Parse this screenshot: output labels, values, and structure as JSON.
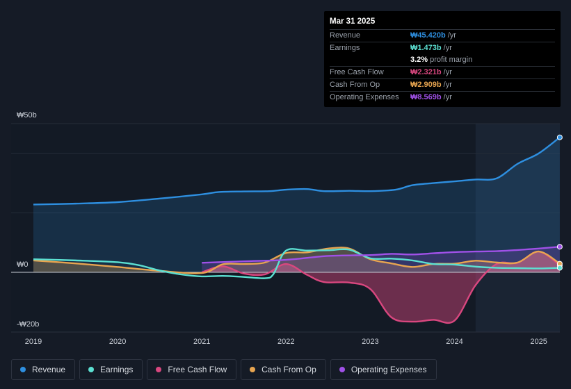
{
  "tooltip": {
    "date": "Mar 31 2025",
    "rows": [
      {
        "label": "Revenue",
        "value": "₩45.420b",
        "unit": "/yr",
        "color": "#2e8fe0"
      },
      {
        "label": "Earnings",
        "value": "₩1.473b",
        "unit": "/yr",
        "color": "#5ce0d2"
      },
      {
        "label": "",
        "value": "3.2%",
        "unit": "profit margin",
        "color": "#ffffff"
      },
      {
        "label": "Free Cash Flow",
        "value": "₩2.321b",
        "unit": "/yr",
        "color": "#d9477f"
      },
      {
        "label": "Cash From Op",
        "value": "₩2.909b",
        "unit": "/yr",
        "color": "#e8a550"
      },
      {
        "label": "Operating Expenses",
        "value": "₩8.569b",
        "unit": "/yr",
        "color": "#a051e8"
      }
    ]
  },
  "legend": [
    {
      "label": "Revenue",
      "color": "#2e8fe0"
    },
    {
      "label": "Earnings",
      "color": "#5ce0d2"
    },
    {
      "label": "Free Cash Flow",
      "color": "#d9477f"
    },
    {
      "label": "Cash From Op",
      "color": "#e8a550"
    },
    {
      "label": "Operating Expenses",
      "color": "#a051e8"
    }
  ],
  "chart_data": {
    "type": "line",
    "title": "",
    "xlabel": "",
    "ylabel": "",
    "ylim": [
      -20,
      50
    ],
    "xlim": [
      2018.9,
      2025.25
    ],
    "y_tick_labels": [
      {
        "value": 50,
        "label": "₩50b"
      },
      {
        "value": 0,
        "label": "₩0"
      },
      {
        "value": -20,
        "label": "-₩20b"
      }
    ],
    "x_tick_labels": [
      {
        "value": 2019,
        "label": "2019"
      },
      {
        "value": 2020,
        "label": "2020"
      },
      {
        "value": 2021,
        "label": "2021"
      },
      {
        "value": 2022,
        "label": "2022"
      },
      {
        "value": 2023,
        "label": "2023"
      },
      {
        "value": 2024,
        "label": "2024"
      },
      {
        "value": 2025,
        "label": "2025"
      }
    ],
    "forecast_start": 2024.25,
    "series": [
      {
        "name": "Revenue",
        "color": "#2e8fe0",
        "fill": true,
        "x": [
          2019.0,
          2019.5,
          2020.0,
          2020.5,
          2021.0,
          2021.2,
          2021.5,
          2021.8,
          2022.0,
          2022.25,
          2022.45,
          2022.75,
          2023.0,
          2023.3,
          2023.5,
          2023.75,
          2024.0,
          2024.25,
          2024.5,
          2024.75,
          2025.0,
          2025.25
        ],
        "values": [
          22.8,
          23.1,
          23.6,
          24.8,
          26.2,
          27.0,
          27.2,
          27.3,
          27.8,
          28.0,
          27.3,
          27.4,
          27.3,
          27.8,
          29.3,
          30.0,
          30.6,
          31.2,
          31.6,
          36.5,
          40.0,
          45.4
        ]
      },
      {
        "name": "Earnings",
        "color": "#5ce0d2",
        "fill": false,
        "x": [
          2019.0,
          2019.5,
          2020.0,
          2020.25,
          2020.5,
          2020.75,
          2021.0,
          2021.25,
          2021.5,
          2021.75,
          2021.85,
          2022.0,
          2022.25,
          2022.5,
          2022.75,
          2023.0,
          2023.25,
          2023.5,
          2023.75,
          2024.0,
          2024.25,
          2024.5,
          2024.75,
          2025.0,
          2025.25
        ],
        "values": [
          4.4,
          4.0,
          3.4,
          2.4,
          0.6,
          -0.8,
          -1.6,
          -1.4,
          -1.8,
          -2.3,
          -0.7,
          7.3,
          7.3,
          7.4,
          7.6,
          4.7,
          4.6,
          4.0,
          2.8,
          2.6,
          1.9,
          1.5,
          1.4,
          1.3,
          1.5
        ]
      },
      {
        "name": "Free Cash Flow",
        "color": "#d9477f",
        "fill": true,
        "x": [
          2021.0,
          2021.25,
          2021.5,
          2021.75,
          2022.0,
          2022.25,
          2022.45,
          2022.75,
          2023.0,
          2023.25,
          2023.5,
          2023.75,
          2024.0,
          2024.25,
          2024.5,
          2024.75,
          2025.0,
          2025.25
        ],
        "values": [
          0.0,
          2.0,
          -0.5,
          -0.8,
          2.8,
          -1.0,
          -3.8,
          -4.0,
          -6.5,
          -17.5,
          -19.2,
          -18.5,
          -18.8,
          -5.0,
          2.8,
          3.2,
          7.0,
          2.3
        ]
      },
      {
        "name": "Cash From Op",
        "color": "#e8a550",
        "fill": true,
        "x": [
          2019.0,
          2019.5,
          2020.0,
          2020.5,
          2021.0,
          2021.25,
          2021.5,
          2021.75,
          2022.0,
          2022.25,
          2022.5,
          2022.75,
          2023.0,
          2023.25,
          2023.5,
          2023.75,
          2024.0,
          2024.25,
          2024.5,
          2024.75,
          2025.0,
          2025.25
        ],
        "values": [
          4.0,
          3.0,
          1.8,
          0.5,
          -0.3,
          2.7,
          2.8,
          3.3,
          6.5,
          6.7,
          8.0,
          8.0,
          4.4,
          3.0,
          1.8,
          2.8,
          2.9,
          3.9,
          3.3,
          3.3,
          7.0,
          2.9
        ]
      },
      {
        "name": "Operating Expenses",
        "color": "#a051e8",
        "fill": true,
        "x": [
          2021.0,
          2021.5,
          2022.0,
          2022.5,
          2023.0,
          2023.25,
          2023.5,
          2023.75,
          2024.0,
          2024.25,
          2024.5,
          2024.75,
          2025.0,
          2025.25
        ],
        "values": [
          3.2,
          3.7,
          4.2,
          5.5,
          5.8,
          6.2,
          6.0,
          6.4,
          6.8,
          7.0,
          7.1,
          7.5,
          8.0,
          8.6
        ]
      }
    ]
  }
}
